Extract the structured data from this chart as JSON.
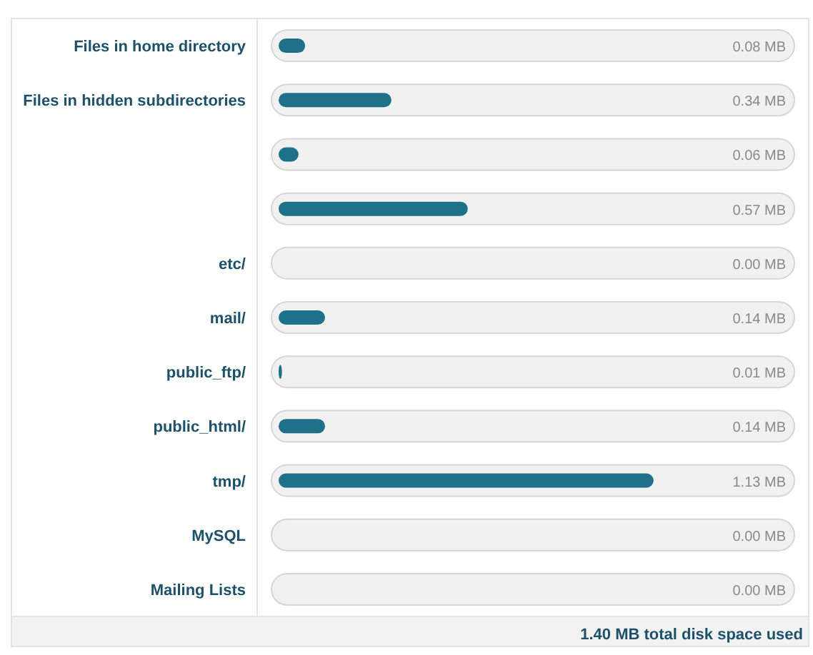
{
  "chart_data": {
    "type": "bar",
    "orientation": "horizontal",
    "categories": [
      "Files in home directory",
      "Files in hidden subdirectories",
      null,
      null,
      "etc/",
      "mail/",
      "public_ftp/",
      "public_html/",
      "tmp/",
      "MySQL",
      "Mailing Lists"
    ],
    "values": [
      0.08,
      0.34,
      0.06,
      0.57,
      0.0,
      0.14,
      0.01,
      0.14,
      1.13,
      0.0,
      0.0
    ],
    "value_labels": [
      "0.08 MB",
      "0.34 MB",
      "0.06 MB",
      "0.57 MB",
      "0.00 MB",
      "0.14 MB",
      "0.01 MB",
      "0.14 MB",
      "1.13 MB",
      "0.00 MB",
      "0.00 MB"
    ],
    "color": "#1f7189",
    "annotations": [
      "1.40 MB total disk space used"
    ]
  }
}
